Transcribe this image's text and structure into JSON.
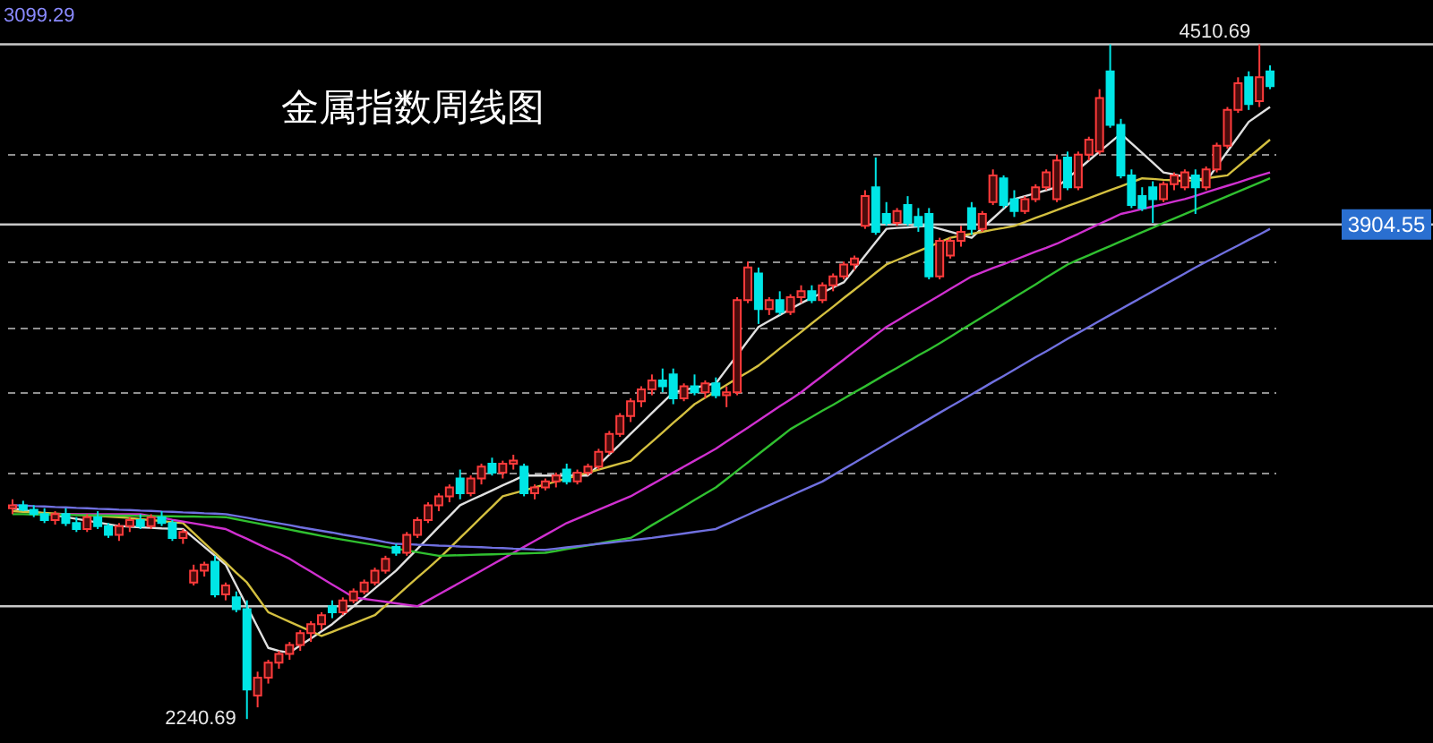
{
  "chart_data": {
    "type": "candlestick",
    "title": "金属指数周线图",
    "categories": [
      null,
      null,
      null,
      null,
      null,
      null,
      null,
      null,
      null,
      null,
      null,
      null,
      null,
      null,
      null,
      null,
      null,
      null,
      null,
      null,
      null,
      null,
      null,
      null,
      null,
      null,
      null,
      null,
      null,
      null,
      null,
      null,
      null,
      null,
      null,
      null,
      null,
      null,
      null,
      null,
      null,
      null,
      null,
      null,
      null,
      null,
      null,
      null,
      null,
      null,
      null,
      null,
      null,
      null,
      null,
      null,
      null,
      null,
      null,
      null,
      null,
      null,
      null,
      null,
      null,
      null,
      null,
      null,
      null,
      null,
      null,
      null,
      null,
      null,
      null,
      null,
      null,
      null,
      null,
      null,
      null,
      null,
      null,
      null,
      null,
      null,
      null,
      null,
      null,
      null,
      null,
      null,
      null,
      null,
      null,
      null,
      null,
      null,
      null,
      null,
      null,
      null,
      null,
      null,
      null,
      null,
      null,
      null,
      null,
      null,
      null,
      null,
      null,
      null,
      null,
      null,
      null,
      null,
      null
    ],
    "ohlc": [
      [
        2950,
        2980,
        2930,
        2960
      ],
      [
        2960,
        2975,
        2940,
        2945
      ],
      [
        2945,
        2960,
        2920,
        2930
      ],
      [
        2930,
        2950,
        2900,
        2910
      ],
      [
        2910,
        2940,
        2895,
        2930
      ],
      [
        2930,
        2950,
        2890,
        2900
      ],
      [
        2900,
        2920,
        2870,
        2880
      ],
      [
        2880,
        2930,
        2870,
        2920
      ],
      [
        2920,
        2940,
        2880,
        2890
      ],
      [
        2890,
        2900,
        2850,
        2860
      ],
      [
        2860,
        2900,
        2840,
        2890
      ],
      [
        2890,
        2920,
        2870,
        2910
      ],
      [
        2910,
        2930,
        2880,
        2890
      ],
      [
        2890,
        2930,
        2880,
        2920
      ],
      [
        2920,
        2940,
        2890,
        2900
      ],
      [
        2900,
        2910,
        2840,
        2850
      ],
      [
        2850,
        2880,
        2830,
        2870
      ],
      [
        2700,
        2760,
        2690,
        2740
      ],
      [
        2740,
        2770,
        2720,
        2760
      ],
      [
        2770,
        2790,
        2650,
        2660
      ],
      [
        2660,
        2700,
        2640,
        2690
      ],
      [
        2650,
        2670,
        2600,
        2610
      ],
      [
        2610,
        2640,
        2240.69,
        2340
      ],
      [
        2320,
        2400,
        2280,
        2380
      ],
      [
        2380,
        2440,
        2360,
        2430
      ],
      [
        2430,
        2470,
        2410,
        2460
      ],
      [
        2460,
        2500,
        2440,
        2490
      ],
      [
        2490,
        2540,
        2470,
        2530
      ],
      [
        2530,
        2570,
        2500,
        2560
      ],
      [
        2560,
        2600,
        2540,
        2590
      ],
      [
        2620,
        2640,
        2580,
        2600
      ],
      [
        2600,
        2650,
        2590,
        2640
      ],
      [
        2640,
        2680,
        2630,
        2670
      ],
      [
        2670,
        2710,
        2660,
        2700
      ],
      [
        2700,
        2750,
        2690,
        2740
      ],
      [
        2740,
        2790,
        2730,
        2780
      ],
      [
        2820,
        2830,
        2790,
        2800
      ],
      [
        2800,
        2870,
        2790,
        2860
      ],
      [
        2860,
        2920,
        2850,
        2910
      ],
      [
        2910,
        2970,
        2900,
        2960
      ],
      [
        2960,
        3000,
        2940,
        2990
      ],
      [
        2990,
        3030,
        2970,
        3020
      ],
      [
        3050,
        3080,
        2980,
        3000
      ],
      [
        3000,
        3060,
        2990,
        3050
      ],
      [
        3050,
        3100,
        3030,
        3090
      ],
      [
        3100,
        3120,
        3060,
        3070
      ],
      [
        3070,
        3110,
        3050,
        3100
      ],
      [
        3100,
        3130,
        3080,
        3110
      ],
      [
        3090,
        3100,
        2990,
        3000
      ],
      [
        3000,
        3030,
        2980,
        3020
      ],
      [
        3020,
        3050,
        3010,
        3040
      ],
      [
        3040,
        3070,
        3020,
        3060
      ],
      [
        3080,
        3100,
        3030,
        3040
      ],
      [
        3040,
        3080,
        3030,
        3070
      ],
      [
        3070,
        3100,
        3060,
        3090
      ],
      [
        3090,
        3150,
        3080,
        3140
      ],
      [
        3140,
        3210,
        3130,
        3200
      ],
      [
        3200,
        3270,
        3190,
        3260
      ],
      [
        3260,
        3320,
        3240,
        3310
      ],
      [
        3310,
        3360,
        3290,
        3350
      ],
      [
        3350,
        3400,
        3330,
        3380
      ],
      [
        3380,
        3420,
        3340,
        3360
      ],
      [
        3400,
        3420,
        3300,
        3320
      ],
      [
        3320,
        3370,
        3310,
        3360
      ],
      [
        3360,
        3400,
        3330,
        3340
      ],
      [
        3340,
        3380,
        3320,
        3370
      ],
      [
        3370,
        3390,
        3320,
        3330
      ],
      [
        3330,
        3360,
        3290,
        3340
      ],
      [
        3340,
        3660,
        3330,
        3650
      ],
      [
        3650,
        3780,
        3640,
        3760
      ],
      [
        3740,
        3760,
        3570,
        3620
      ],
      [
        3620,
        3660,
        3600,
        3650
      ],
      [
        3650,
        3680,
        3600,
        3610
      ],
      [
        3610,
        3670,
        3600,
        3660
      ],
      [
        3660,
        3700,
        3640,
        3680
      ],
      [
        3680,
        3700,
        3640,
        3650
      ],
      [
        3650,
        3710,
        3640,
        3700
      ],
      [
        3700,
        3740,
        3680,
        3730
      ],
      [
        3730,
        3780,
        3720,
        3770
      ],
      [
        3770,
        3800,
        3750,
        3790
      ],
      [
        3900,
        4020,
        3890,
        4000
      ],
      [
        4030,
        4130,
        3870,
        3880
      ],
      [
        3940,
        3980,
        3900,
        3910
      ],
      [
        3910,
        3960,
        3900,
        3950
      ],
      [
        3970,
        4000,
        3900,
        3910
      ],
      [
        3930,
        3960,
        3880,
        3900
      ],
      [
        3940,
        3960,
        3720,
        3730
      ],
      [
        3730,
        3860,
        3720,
        3850
      ],
      [
        3800,
        3860,
        3790,
        3850
      ],
      [
        3850,
        3900,
        3830,
        3880
      ],
      [
        3960,
        3980,
        3870,
        3890
      ],
      [
        3890,
        3950,
        3880,
        3940
      ],
      [
        3980,
        4090,
        3970,
        4070
      ],
      [
        4060,
        4070,
        3960,
        3970
      ],
      [
        3990,
        4020,
        3930,
        3950
      ],
      [
        3950,
        4000,
        3940,
        3990
      ],
      [
        3990,
        4040,
        3980,
        4030
      ],
      [
        4030,
        4090,
        4020,
        4080
      ],
      [
        3990,
        4140,
        3980,
        4120
      ],
      [
        4130,
        4150,
        4020,
        4030
      ],
      [
        4030,
        4150,
        4020,
        4140
      ],
      [
        4140,
        4200,
        4120,
        4190
      ],
      [
        4150,
        4360,
        4140,
        4330
      ],
      [
        4420,
        4510.69,
        4230,
        4240
      ],
      [
        4240,
        4260,
        4060,
        4070
      ],
      [
        4070,
        4090,
        3960,
        3970
      ],
      [
        4000,
        4030,
        3950,
        3960
      ],
      [
        4030,
        4050,
        3910,
        3990
      ],
      [
        3990,
        4050,
        3980,
        4040
      ],
      [
        4040,
        4080,
        4020,
        4070
      ],
      [
        4030,
        4090,
        4020,
        4080
      ],
      [
        4070,
        4090,
        3940,
        4030
      ],
      [
        4030,
        4100,
        4020,
        4090
      ],
      [
        4090,
        4180,
        4080,
        4170
      ],
      [
        4170,
        4300,
        4160,
        4290
      ],
      [
        4290,
        4400,
        4280,
        4380
      ],
      [
        4400,
        4420,
        4290,
        4310
      ],
      [
        4320,
        4510.69,
        4300,
        4400
      ],
      [
        4420,
        4440,
        4360,
        4370
      ]
    ],
    "series": [
      {
        "type": "line",
        "color": "#e0e0e0",
        "values": [
          2950,
          2944,
          2938,
          2932,
          2926,
          2920,
          2914,
          2908,
          2902,
          2896,
          2890,
          2888,
          2886,
          2884,
          2882,
          2881,
          2880,
          2850,
          2820,
          2790,
          2760,
          2690,
          2620,
          2550,
          2480,
          2470,
          2464,
          2488,
          2512,
          2536,
          2560,
          2590,
          2620,
          2650,
          2680,
          2710,
          2740,
          2777,
          2813,
          2850,
          2887,
          2923,
          2960,
          2977,
          2993,
          3010,
          3027,
          3043,
          3060,
          3060,
          3060,
          3060,
          3060,
          3060,
          3060,
          3095,
          3130,
          3165,
          3200,
          3235,
          3270,
          3305,
          3340,
          3348,
          3355,
          3363,
          3370,
          3418,
          3465,
          3513,
          3560,
          3580,
          3600,
          3620,
          3640,
          3658,
          3675,
          3693,
          3710,
          3755,
          3800,
          3845,
          3890,
          3893,
          3895,
          3898,
          3900,
          3890,
          3880,
          3870,
          3860,
          3893,
          3925,
          3958,
          3990,
          4000,
          4010,
          4020,
          4030,
          4060,
          4090,
          4120,
          4150,
          4180,
          4210,
          4178,
          4145,
          4113,
          4080,
          4073,
          4065,
          4058,
          4050,
          4100,
          4150,
          4200,
          4250,
          4275,
          4300
        ]
      },
      {
        "type": "line",
        "color": "#d4c040",
        "values": [
          2940,
          2938,
          2936,
          2934,
          2932,
          2930,
          2928,
          2926,
          2924,
          2922,
          2920,
          2917,
          2913,
          2910,
          2907,
          2903,
          2900,
          2867,
          2833,
          2800,
          2767,
          2733,
          2700,
          2650,
          2600,
          2584,
          2568,
          2552,
          2536,
          2520,
          2534,
          2548,
          2562,
          2576,
          2590,
          2622,
          2653,
          2685,
          2717,
          2748,
          2780,
          2815,
          2850,
          2885,
          2920,
          2955,
          2990,
          3000,
          3010,
          3020,
          3030,
          3040,
          3050,
          3060,
          3070,
          3080,
          3090,
          3100,
          3110,
          3142,
          3173,
          3205,
          3237,
          3268,
          3300,
          3322,
          3343,
          3365,
          3387,
          3408,
          3430,
          3458,
          3487,
          3515,
          3543,
          3572,
          3600,
          3628,
          3657,
          3685,
          3713,
          3742,
          3770,
          3785,
          3800,
          3815,
          3830,
          3845,
          3860,
          3867,
          3873,
          3880,
          3887,
          3893,
          3900,
          3913,
          3927,
          3940,
          3953,
          3967,
          3980,
          3993,
          4007,
          4020,
          4033,
          4047,
          4060,
          4058,
          4055,
          4053,
          4050,
          4055,
          4060,
          4065,
          4070,
          4100,
          4130,
          4160,
          4190
        ]
      },
      {
        "type": "line",
        "color": "#d030d0",
        "values": [
          null,
          null,
          null,
          null,
          2930,
          2930,
          2930,
          2930,
          2930,
          2930,
          2930,
          2930,
          2930,
          2924,
          2918,
          2911,
          2905,
          2899,
          2893,
          2886,
          2880,
          2863,
          2847,
          2830,
          2813,
          2797,
          2780,
          2758,
          2737,
          2715,
          2693,
          2672,
          2650,
          2645,
          2640,
          2635,
          2630,
          2625,
          2620,
          2640,
          2660,
          2680,
          2700,
          2720,
          2740,
          2760,
          2780,
          2800,
          2820,
          2840,
          2860,
          2880,
          2900,
          2915,
          2930,
          2945,
          2960,
          2975,
          2990,
          3010,
          3030,
          3050,
          3070,
          3090,
          3110,
          3130,
          3150,
          3174,
          3198,
          3221,
          3245,
          3269,
          3293,
          3316,
          3340,
          3368,
          3395,
          3423,
          3450,
          3478,
          3505,
          3533,
          3560,
          3581,
          3603,
          3624,
          3645,
          3666,
          3688,
          3709,
          3730,
          3744,
          3758,
          3771,
          3785,
          3799,
          3813,
          3826,
          3840,
          3857,
          3873,
          3890,
          3907,
          3923,
          3940,
          3948,
          3957,
          3965,
          3973,
          3982,
          3990,
          4001,
          4013,
          4024,
          4035,
          4046,
          4058,
          4069,
          4080
        ]
      },
      {
        "type": "line",
        "color": "#30c030",
        "values": [
          2930,
          2930,
          2929,
          2929,
          2928,
          2928,
          2927,
          2927,
          2926,
          2926,
          2925,
          2925,
          2924,
          2924,
          2923,
          2923,
          2922,
          2922,
          2921,
          2921,
          2920,
          2913,
          2906,
          2899,
          2892,
          2885,
          2878,
          2871,
          2864,
          2857,
          2850,
          2844,
          2838,
          2832,
          2826,
          2820,
          2814,
          2808,
          2802,
          2796,
          2790,
          2791,
          2792,
          2793,
          2794,
          2795,
          2796,
          2797,
          2798,
          2799,
          2800,
          2806,
          2813,
          2819,
          2825,
          2831,
          2838,
          2844,
          2850,
          2871,
          2893,
          2914,
          2935,
          2956,
          2978,
          2999,
          3020,
          3048,
          3076,
          3104,
          3132,
          3160,
          3188,
          3216,
          3237,
          3257,
          3278,
          3298,
          3319,
          3340,
          3360,
          3381,
          3402,
          3422,
          3443,
          3464,
          3484,
          3505,
          3527,
          3549,
          3571,
          3593,
          3615,
          3637,
          3659,
          3681,
          3703,
          3726,
          3748,
          3770,
          3786,
          3801,
          3817,
          3832,
          3848,
          3863,
          3879,
          3894,
          3910,
          3925,
          3940,
          3955,
          3970,
          3985,
          4000,
          4015,
          4030,
          4045,
          4060
        ]
      },
      {
        "type": "line",
        "color": "#7070e0",
        "values": [
          2960,
          2959,
          2957,
          2956,
          2954,
          2953,
          2951,
          2950,
          2948,
          2947,
          2945,
          2944,
          2942,
          2941,
          2939,
          2938,
          2936,
          2935,
          2933,
          2932,
          2930,
          2924,
          2918,
          2911,
          2905,
          2899,
          2893,
          2886,
          2880,
          2874,
          2868,
          2861,
          2855,
          2849,
          2843,
          2836,
          2830,
          2829,
          2827,
          2826,
          2824,
          2823,
          2821,
          2820,
          2819,
          2817,
          2816,
          2814,
          2813,
          2811,
          2810,
          2814,
          2818,
          2822,
          2826,
          2830,
          2834,
          2838,
          2842,
          2846,
          2850,
          2855,
          2860,
          2865,
          2870,
          2875,
          2880,
          2896,
          2912,
          2928,
          2944,
          2960,
          2976,
          2992,
          3008,
          3024,
          3040,
          3061,
          3082,
          3103,
          3124,
          3145,
          3166,
          3187,
          3208,
          3229,
          3250,
          3271,
          3292,
          3312,
          3333,
          3354,
          3375,
          3395,
          3416,
          3437,
          3458,
          3478,
          3499,
          3520,
          3540,
          3560,
          3580,
          3600,
          3620,
          3640,
          3660,
          3680,
          3700,
          3720,
          3740,
          3760,
          3779,
          3797,
          3816,
          3834,
          3853,
          3871,
          3890
        ]
      }
    ],
    "ylim": [
      2160,
      4660
    ],
    "yticks": [
      {
        "value": 4140,
        "label": null
      },
      {
        "value": 3780,
        "label": null
      },
      {
        "value": 3560,
        "label": null
      },
      {
        "value": 3340,
        "label": null
      },
      {
        "value": 3070,
        "label": null
      }
    ],
    "grid": "y",
    "ref_lines": [
      {
        "axis": "y",
        "value": 4510.69,
        "label": "4510.69"
      },
      {
        "axis": "y",
        "value": 3904.55,
        "label": "3904.55"
      },
      {
        "axis": "y",
        "value": 2620
      }
    ],
    "annotations": [
      "3099.29",
      "2240.69"
    ]
  }
}
